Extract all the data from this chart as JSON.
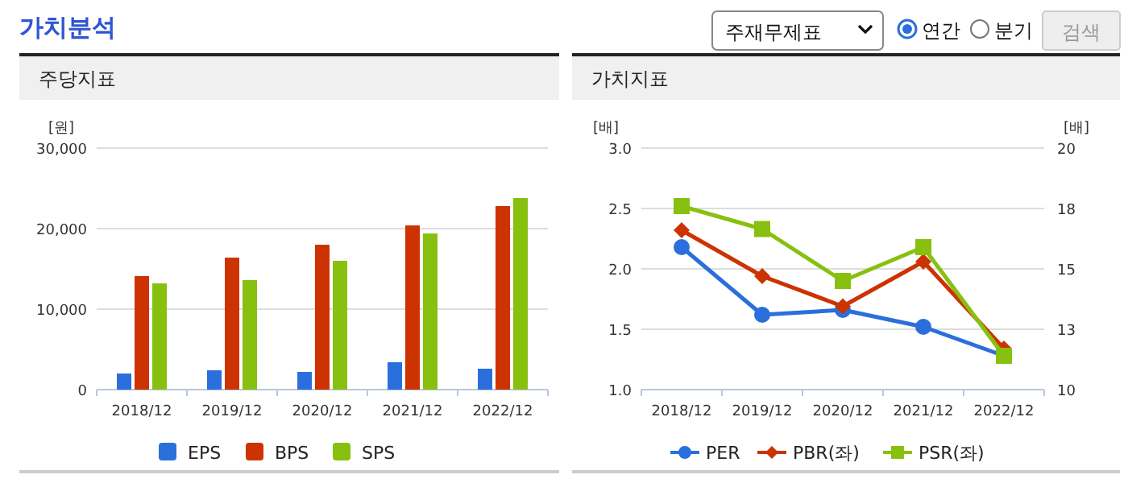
{
  "chart_data": [
    {
      "type": "other",
      "title": "가치분석",
      "annotations": [
        "주재무제표",
        "연간",
        "분기",
        "검색"
      ]
    },
    {
      "type": "bar",
      "title": "주당지표",
      "ylabel": "[원]",
      "categories": [
        "2018/12",
        "2019/12",
        "2020/12",
        "2021/12",
        "2022/12"
      ],
      "series": [
        {
          "name": "EPS",
          "color": "#2a6fdb",
          "values": [
            2000,
            2400,
            2200,
            3400,
            2600
          ]
        },
        {
          "name": "BPS",
          "color": "#cc3300",
          "values": [
            14100,
            16400,
            18000,
            20400,
            22800
          ]
        },
        {
          "name": "SPS",
          "color": "#88c010",
          "values": [
            13200,
            13600,
            16000,
            19400,
            23800
          ]
        }
      ],
      "ylim": [
        0,
        30000
      ],
      "yticks": [
        0,
        {
          "value": 10000,
          "label": "10,000"
        },
        {
          "value": 20000,
          "label": "20,000"
        },
        {
          "value": 30000,
          "label": "30,000"
        }
      ],
      "grid": "y",
      "legend": "bottom"
    },
    {
      "type": "line",
      "title": "가치지표",
      "ylabel": "[배]",
      "y2label": "[배]",
      "categories": [
        "2018/12",
        "2019/12",
        "2020/12",
        "2021/12",
        "2022/12"
      ],
      "series": [
        {
          "name": "PER",
          "color": "#2a6fdb",
          "axis": "y2",
          "marker": "circle",
          "values": [
            15.9,
            13.1,
            13.3,
            12.6,
            11.4
          ]
        },
        {
          "name": "PBR(좌)",
          "color": "#cc3300",
          "marker": "diamond",
          "values": [
            2.32,
            1.94,
            1.69,
            2.06,
            1.34
          ]
        },
        {
          "name": "PSR(좌)",
          "color": "#88c010",
          "marker": "square",
          "values": [
            2.52,
            2.33,
            1.9,
            2.18,
            1.28
          ]
        }
      ],
      "ylim": [
        1,
        3
      ],
      "yticks": [
        {
          "value": 1,
          "label": "1.0"
        },
        {
          "value": 1.5,
          "label": "1.5"
        },
        {
          "value": 2,
          "label": "2.0"
        },
        {
          "value": 2.5,
          "label": "2.5"
        },
        {
          "value": 3,
          "label": "3.0"
        }
      ],
      "y2lim": [
        10,
        20
      ],
      "y2ticks": [
        10,
        {
          "value": 12.5,
          "label": "13"
        },
        15,
        {
          "value": 17.5,
          "label": "18"
        },
        20
      ],
      "grid": "y",
      "legend": "bottom"
    }
  ]
}
